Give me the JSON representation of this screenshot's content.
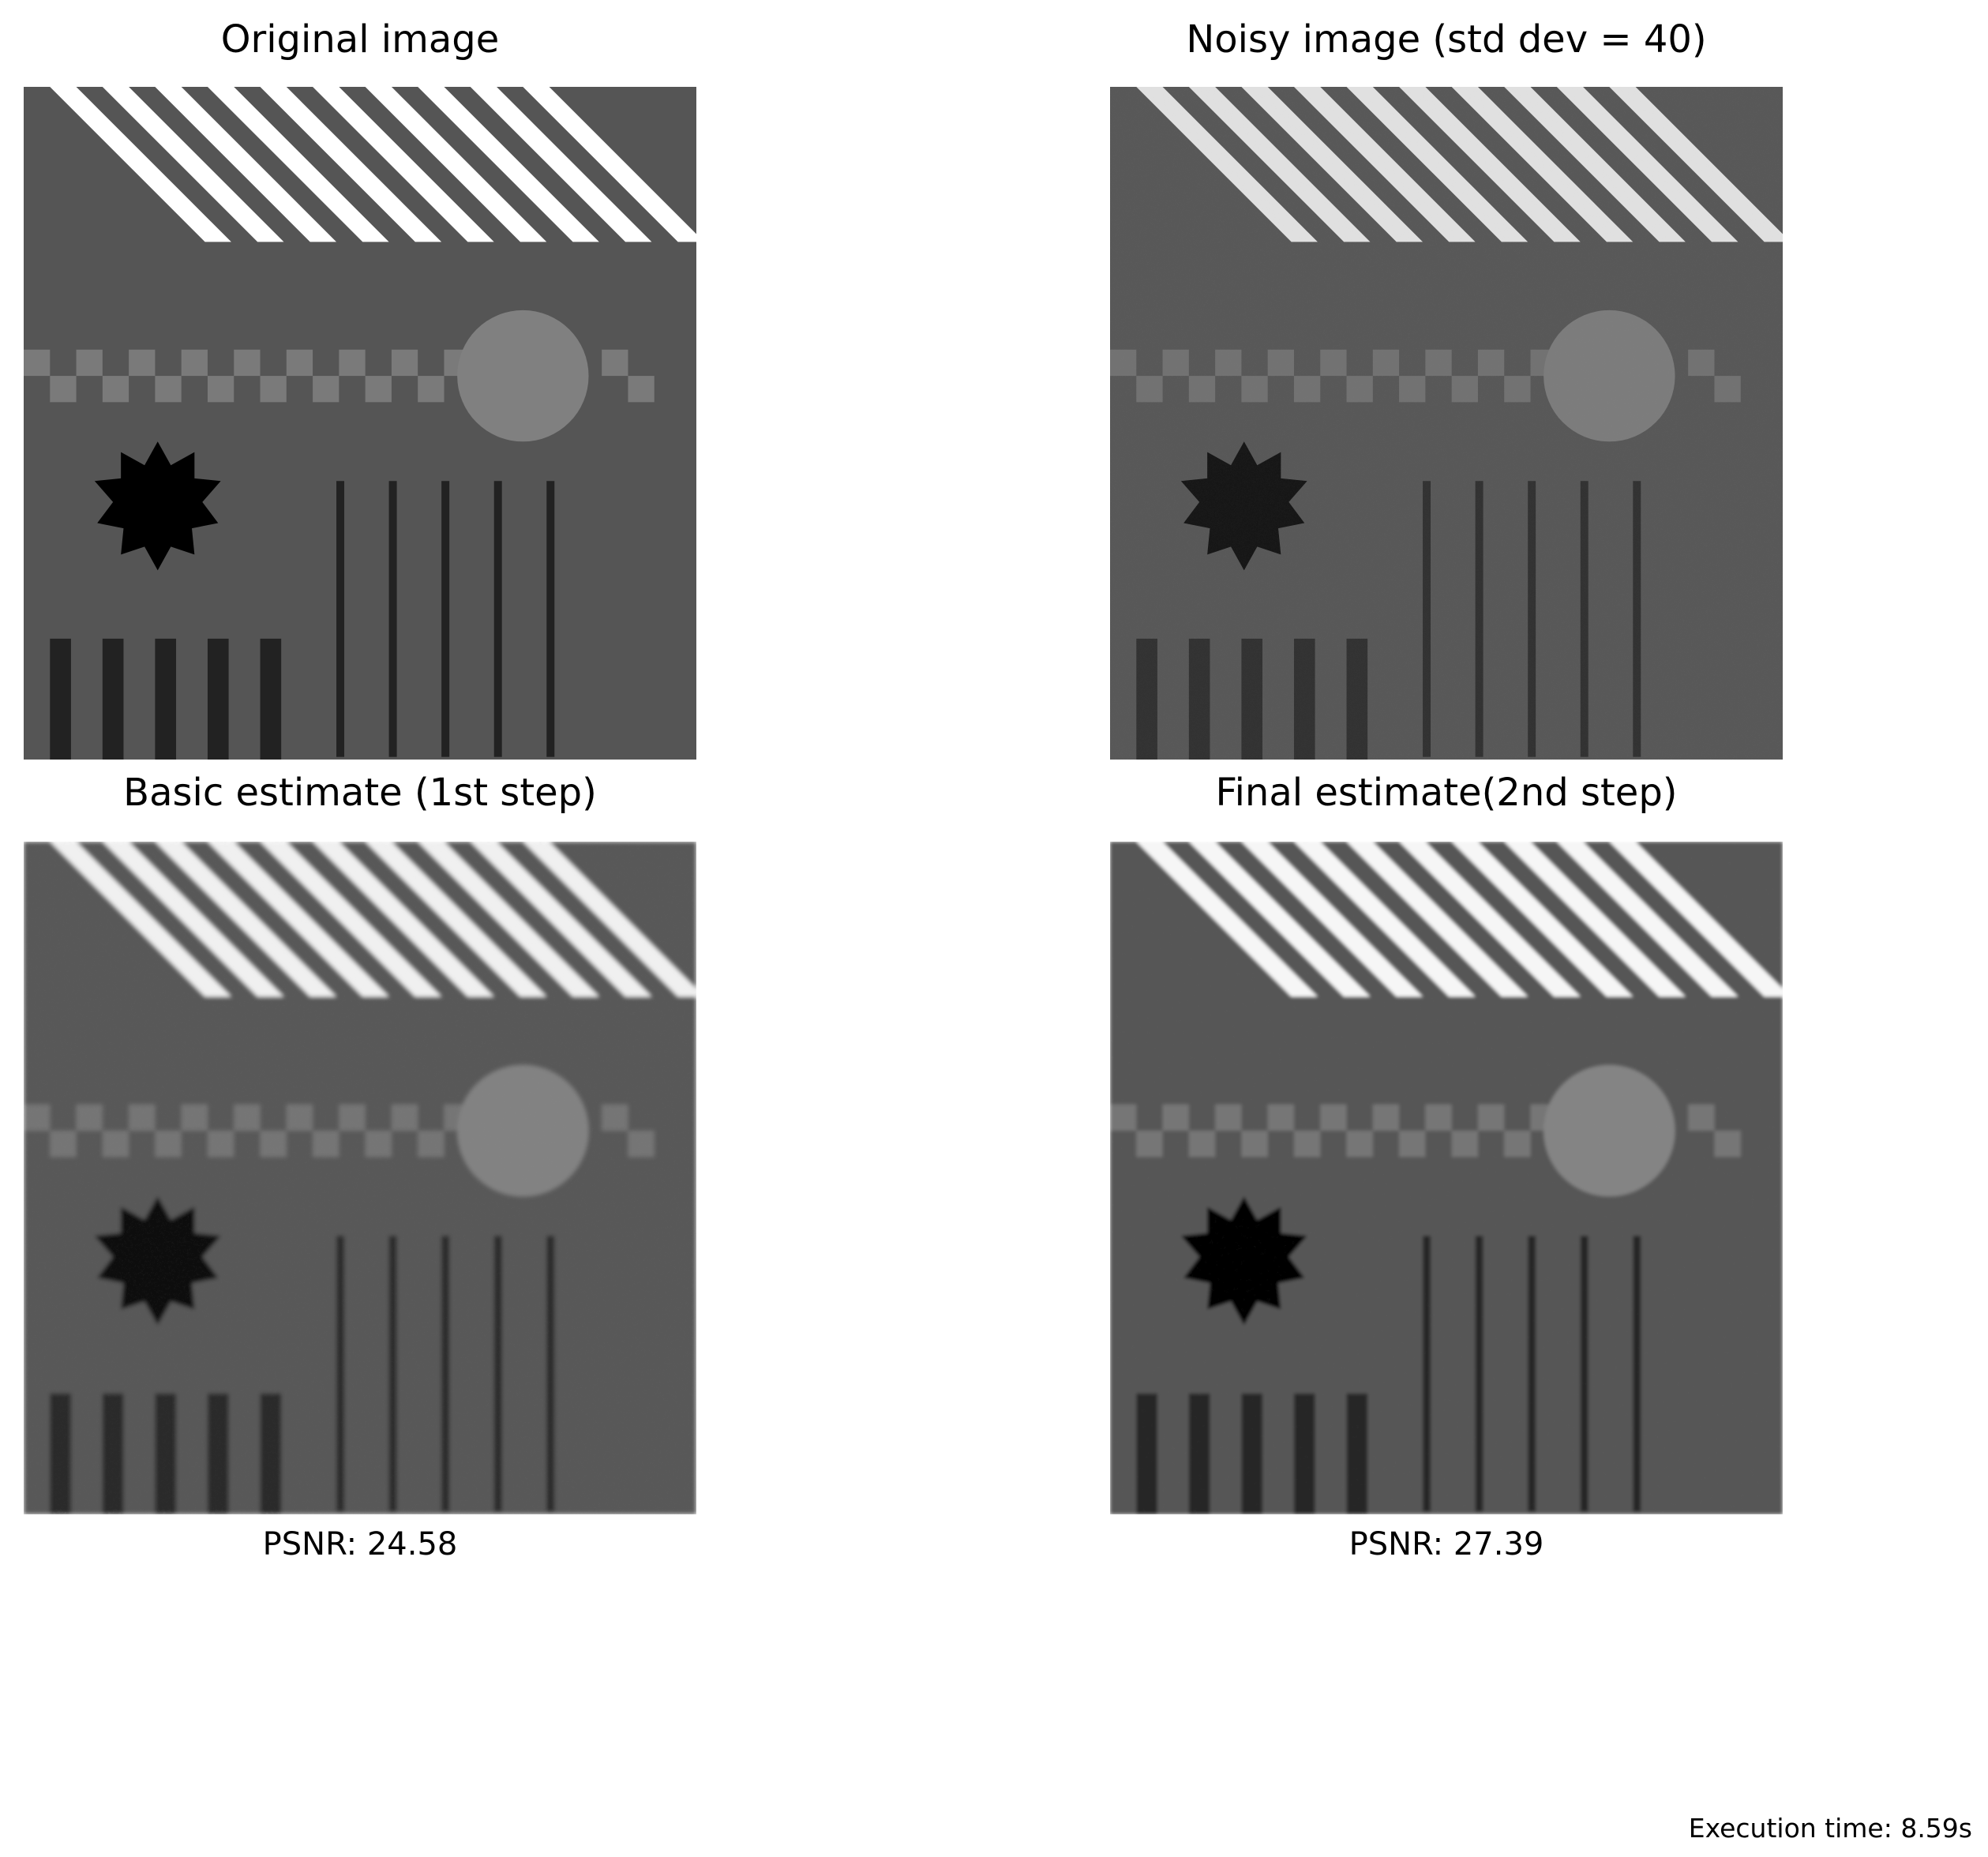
{
  "figure": {
    "panels": [
      {
        "id": "original",
        "title": "Original image",
        "caption": ""
      },
      {
        "id": "noisy",
        "title": "Noisy image (std dev = 40)",
        "caption": ""
      },
      {
        "id": "basic",
        "title": "Basic estimate (1st step)",
        "caption": "PSNR: 24.58"
      },
      {
        "id": "final",
        "title": "Final estimate(2nd step)",
        "caption": "PSNR: 27.39"
      }
    ],
    "execution_time": "Execution time: 8.59s"
  },
  "colors": {
    "page_background": "#ffffff",
    "image_background": "#555555",
    "stripes": "#ffffff",
    "checker_light": "#7a7a7a",
    "circle": "#808080",
    "star": "#000000",
    "bars": "#222222"
  }
}
